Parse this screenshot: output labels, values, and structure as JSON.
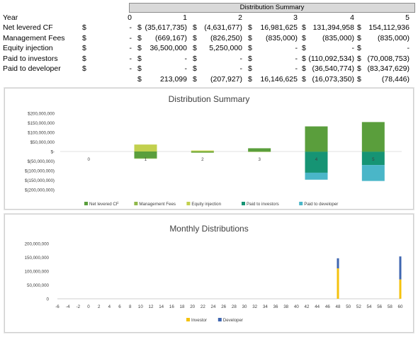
{
  "sheet": {
    "title": "Distribution Summary",
    "header": {
      "label": "Year",
      "cols": [
        "0",
        "1",
        "2",
        "3",
        "4",
        "5"
      ]
    },
    "rows": [
      {
        "label": "Net levered CF",
        "dollar": [
          "$",
          "$",
          "$",
          "$",
          "$",
          "$"
        ],
        "values": [
          "-",
          "(35,617,735)",
          "(4,631,677)",
          "16,981,625",
          "131,394,958",
          "154,112,936"
        ]
      },
      {
        "label": "Management Fees",
        "dollar": [
          "$",
          "$",
          "$",
          "$",
          "$",
          "$"
        ],
        "values": [
          "-",
          "(669,167)",
          "(826,250)",
          "(835,000)",
          "(835,000)",
          "(835,000)"
        ]
      },
      {
        "label": "Equity injection",
        "dollar": [
          "$",
          "$",
          "$",
          "$",
          "$",
          "$"
        ],
        "values": [
          "-",
          "36,500,000",
          "5,250,000",
          "-",
          "-",
          "-"
        ]
      },
      {
        "label": "Paid to investors",
        "dollar": [
          "$",
          "$",
          "$",
          "$",
          "$",
          "$"
        ],
        "values": [
          "-",
          "-",
          "-",
          "-",
          "(110,092,534)",
          "(70,008,753)"
        ]
      },
      {
        "label": "Paid to developer",
        "dollar": [
          "$",
          "$",
          "$",
          "$",
          "$",
          "$"
        ],
        "values": [
          "-",
          "-",
          "-",
          "-",
          "(36,540,774)",
          "(83,347,629)"
        ]
      },
      {
        "label": "",
        "dollar": [
          "",
          "$",
          "$",
          "$",
          "$",
          "$"
        ],
        "values": [
          "",
          "213,099",
          "(207,927)",
          "16,146,625",
          "(16,073,350)",
          "(78,446)"
        ]
      }
    ]
  },
  "chart_data": [
    {
      "type": "bar",
      "stacked": true,
      "title": "Distribution Summary",
      "categories": [
        "0",
        "1",
        "2",
        "3",
        "4",
        "5"
      ],
      "y_tick_labels": [
        "$200,000,000",
        "$150,000,000",
        "$100,000,000",
        "$50,000,000",
        "$-",
        "$(50,000,000)",
        "$(100,000,000)",
        "$(150,000,000)",
        "$(200,000,000)"
      ],
      "ylim": [
        -200000000,
        200000000
      ],
      "legend_position": "bottom",
      "series": [
        {
          "name": "Net levered CF",
          "color": "#5a9e3c",
          "values": [
            0,
            -35617735,
            -4631677,
            16981625,
            131394958,
            154112936
          ]
        },
        {
          "name": "Management Fees",
          "color": "#8fb84a",
          "values": [
            0,
            -669167,
            -826250,
            -835000,
            -835000,
            -835000
          ]
        },
        {
          "name": "Equity injection",
          "color": "#c2d04e",
          "values": [
            0,
            36500000,
            5250000,
            0,
            0,
            0
          ]
        },
        {
          "name": "Paid to investors",
          "color": "#169474",
          "values": [
            0,
            0,
            0,
            0,
            -110092534,
            -70008753
          ]
        },
        {
          "name": "Paid to developer",
          "color": "#4ab6c8",
          "values": [
            0,
            0,
            0,
            0,
            -36540774,
            -83347629
          ]
        }
      ]
    },
    {
      "type": "bar",
      "stacked": true,
      "title": "Monthly Distributions",
      "x_ticks": [
        "-6",
        "-4",
        "-2",
        "0",
        "2",
        "4",
        "6",
        "8",
        "10",
        "12",
        "14",
        "16",
        "18",
        "20",
        "22",
        "24",
        "26",
        "28",
        "30",
        "32",
        "34",
        "36",
        "38",
        "40",
        "42",
        "44",
        "46",
        "48",
        "50",
        "52",
        "54",
        "56",
        "58",
        "60"
      ],
      "y_tick_labels": [
        "200,000,000",
        "150,000,000",
        "100,000,000",
        "50,000,000",
        "0"
      ],
      "ylim": [
        0,
        200000000
      ],
      "xlim": [
        -6,
        60
      ],
      "legend_position": "bottom",
      "series": [
        {
          "name": "Investor",
          "color": "#f4c20d",
          "x": [
            48,
            60
          ],
          "values": [
            110092534,
            70008753
          ]
        },
        {
          "name": "Developer",
          "color": "#3f66b0",
          "x": [
            48,
            60
          ],
          "values": [
            36540774,
            83347629
          ]
        }
      ]
    }
  ]
}
